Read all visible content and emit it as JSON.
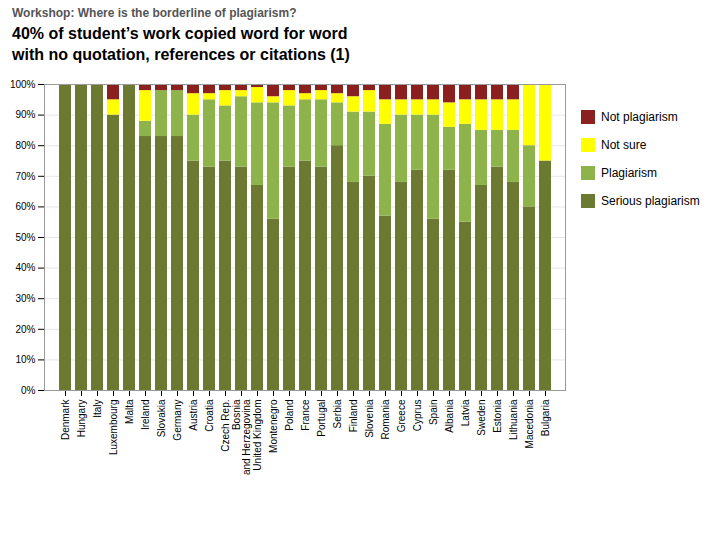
{
  "chart_data": {
    "type": "bar",
    "stacked": true,
    "subtitle": "Workshop: Where is the borderline of plagiarism?",
    "title": "40% of student’s work copied word for word\nwith no quotation, references or citations (1)",
    "categories": [
      "Denmark",
      "Hungary",
      "Italy",
      "Luxembourg",
      "Malta",
      "Ireland",
      "Slovakia",
      "Germany",
      "Austria",
      "Croatia",
      "Czech Rep.",
      "Bosnia\nand Herzegovina",
      "United Kingdom",
      "Montenegro",
      "Poland",
      "France",
      "Portugal",
      "Serbia",
      "Finland",
      "Slovenia",
      "Romania",
      "Greece",
      "Cyprus",
      "Spain",
      "Albania",
      "Latvia",
      "Sweden",
      "Estonia",
      "Lithuania",
      "Macedonia",
      "Bulgaria"
    ],
    "series": [
      {
        "name": "Serious plagiarism",
        "color": "#6b7a30",
        "values": [
          100,
          100,
          100,
          90,
          100,
          83,
          83,
          83,
          75,
          73,
          75,
          73,
          67,
          56,
          73,
          75,
          73,
          80,
          68,
          70,
          57,
          68,
          72,
          56,
          72,
          55,
          67,
          73,
          68,
          60,
          75
        ]
      },
      {
        "name": "Plagiarism",
        "color": "#8db34a",
        "values": [
          0,
          0,
          0,
          0,
          0,
          5,
          15,
          15,
          15,
          22,
          18,
          23,
          27,
          38,
          20,
          20,
          22,
          14,
          23,
          21,
          30,
          22,
          18,
          34,
          14,
          32,
          18,
          12,
          17,
          20,
          0
        ]
      },
      {
        "name": "Not sure",
        "color": "#ffff00",
        "values": [
          0,
          0,
          0,
          5,
          0,
          10,
          0,
          0,
          7,
          2,
          5,
          2,
          5,
          2,
          5,
          2,
          3,
          3,
          5,
          7,
          8,
          5,
          5,
          5,
          8,
          8,
          10,
          10,
          10,
          20,
          25
        ]
      },
      {
        "name": "Not plagiarism",
        "color": "#8b2020",
        "values": [
          0,
          0,
          0,
          5,
          0,
          2,
          2,
          2,
          3,
          3,
          2,
          2,
          1,
          4,
          2,
          3,
          2,
          3,
          4,
          2,
          5,
          5,
          5,
          5,
          6,
          5,
          5,
          5,
          5,
          0,
          0
        ]
      }
    ],
    "ylim": [
      0,
      100
    ],
    "yticks": [
      {
        "value": 0,
        "label": "0%"
      },
      {
        "value": 10,
        "label": "10%"
      },
      {
        "value": 20,
        "label": "20%"
      },
      {
        "value": 30,
        "label": "30%"
      },
      {
        "value": 40,
        "label": "40%"
      },
      {
        "value": 50,
        "label": "50%"
      },
      {
        "value": 60,
        "label": "60%"
      },
      {
        "value": 70,
        "label": "70%"
      },
      {
        "value": 80,
        "label": "80%"
      },
      {
        "value": 90,
        "label": "90%"
      },
      {
        "value": 100,
        "label": "100%"
      }
    ],
    "grid": true,
    "legend": "right"
  }
}
